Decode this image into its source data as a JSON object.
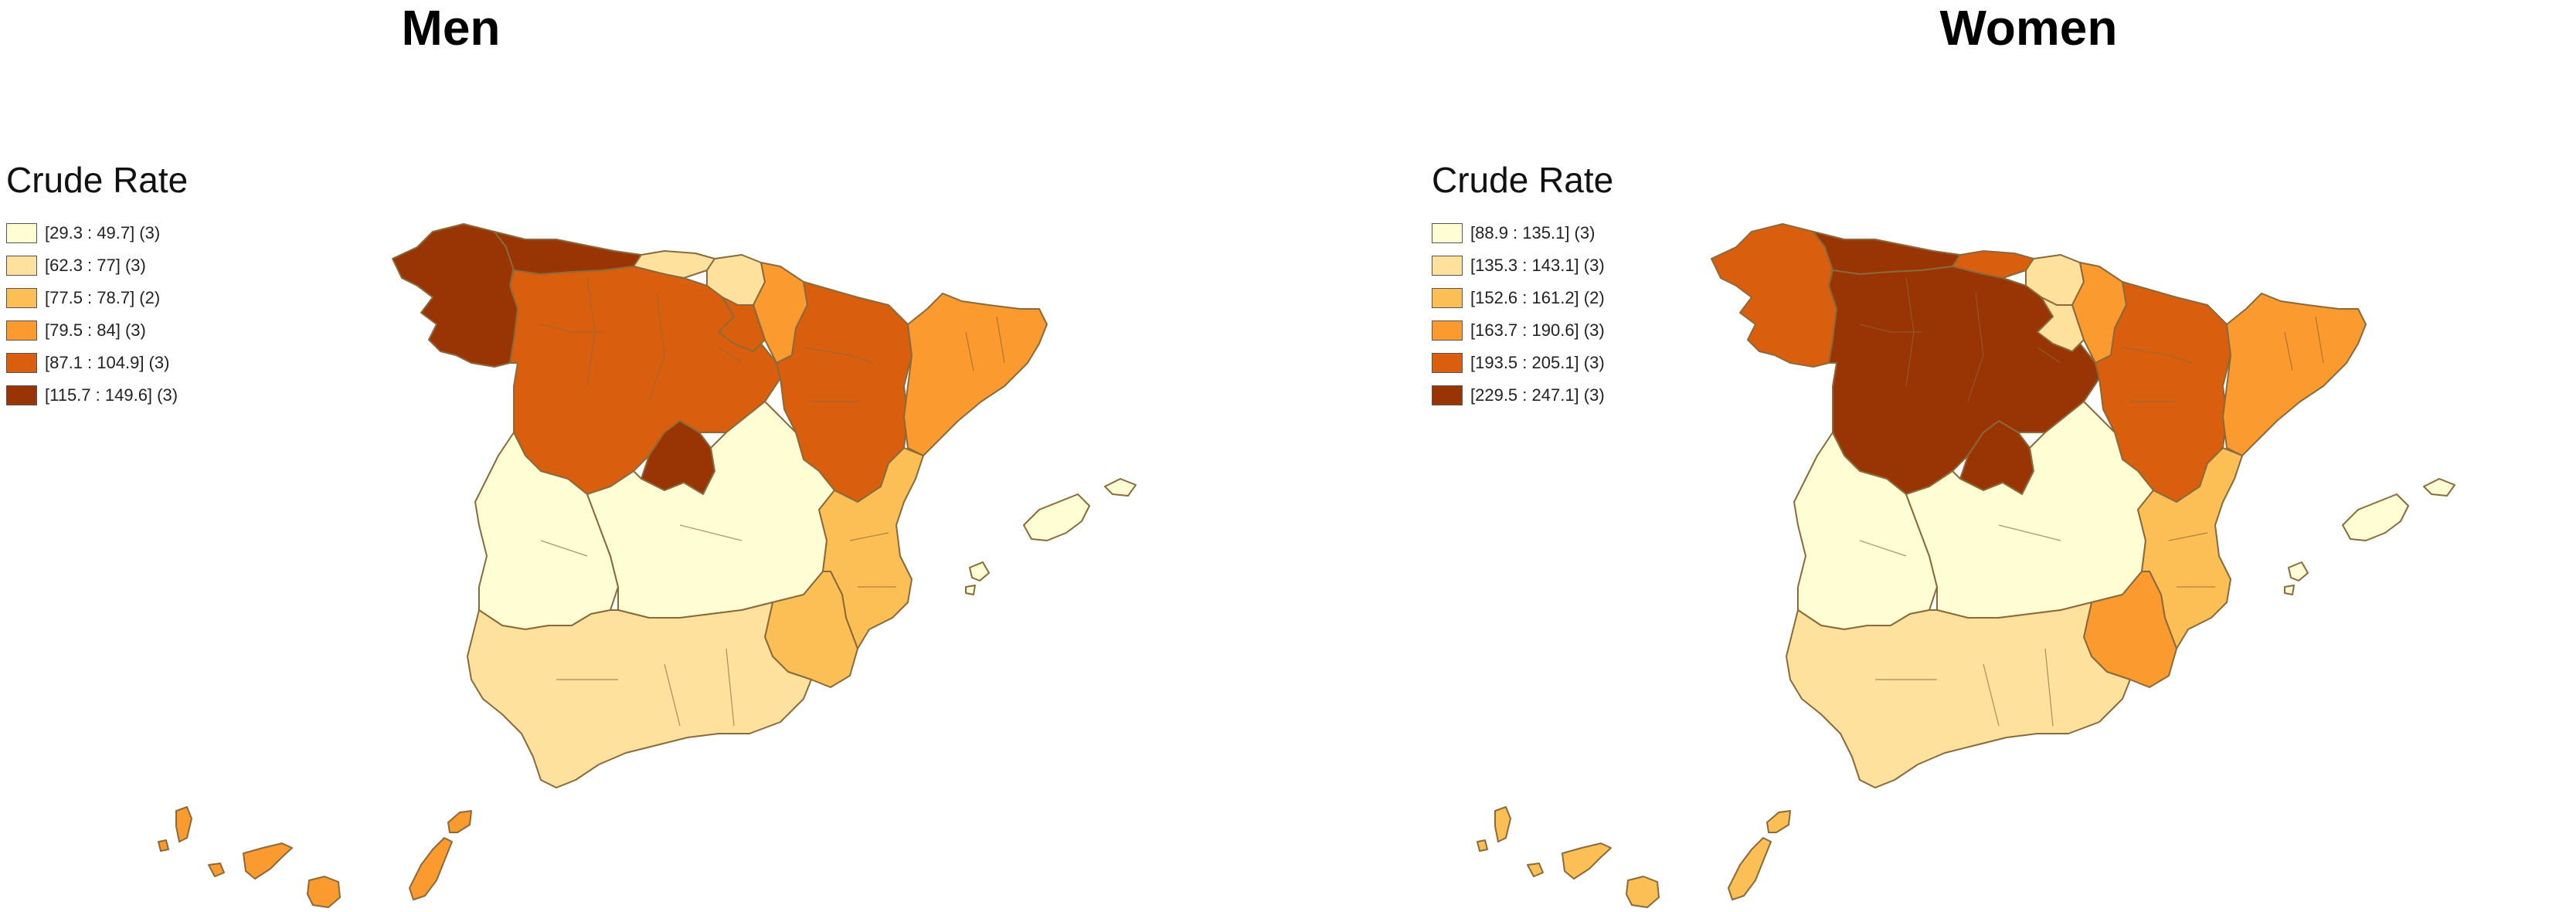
{
  "colors": {
    "class1": "#fffdd4",
    "class2": "#fde19d",
    "class3": "#fbbf55",
    "class4": "#fb9a2f",
    "class5": "#d95f0e",
    "class6": "#993404",
    "border": "#8a6a3a"
  },
  "men": {
    "title": "Men",
    "legend_title": "Crude Rate",
    "legend": [
      {
        "label": "[29.3 : 49.7] (3)",
        "class": 1
      },
      {
        "label": "[62.3 : 77] (3)",
        "class": 2
      },
      {
        "label": "[77.5 : 78.7] (2)",
        "class": 3
      },
      {
        "label": "[79.5 : 84] (3)",
        "class": 4
      },
      {
        "label": "[87.1 : 104.9] (3)",
        "class": 5
      },
      {
        "label": "[115.7 : 149.6] (3)",
        "class": 6
      }
    ],
    "regions": {
      "galicia": 6,
      "asturias": 6,
      "cantabria": 2,
      "basque": 2,
      "navarra": 4,
      "castilla_leon": 5,
      "la_rioja": 5,
      "aragon": 5,
      "catalonia": 4,
      "madrid": 6,
      "extremadura": 1,
      "castilla_la_mancha": 1,
      "valencia": 3,
      "murcia": 3,
      "andalusia": 2,
      "balearic": 1,
      "canary": 4
    }
  },
  "women": {
    "title": "Women",
    "legend_title": "Crude Rate",
    "legend": [
      {
        "label": "[88.9 : 135.1] (3)",
        "class": 1
      },
      {
        "label": "[135.3 : 143.1] (3)",
        "class": 2
      },
      {
        "label": "[152.6 : 161.2] (2)",
        "class": 3
      },
      {
        "label": "[163.7 : 190.6] (3)",
        "class": 4
      },
      {
        "label": "[193.5 : 205.1] (3)",
        "class": 5
      },
      {
        "label": "[229.5 : 247.1] (3)",
        "class": 6
      }
    ],
    "regions": {
      "galicia": 5,
      "asturias": 6,
      "cantabria": 5,
      "basque": 2,
      "navarra": 4,
      "castilla_leon": 6,
      "la_rioja": 2,
      "aragon": 5,
      "catalonia": 4,
      "madrid": 6,
      "extremadura": 1,
      "castilla_la_mancha": 1,
      "valencia": 3,
      "murcia": 4,
      "andalusia": 2,
      "balearic": 1,
      "canary": 3
    }
  }
}
